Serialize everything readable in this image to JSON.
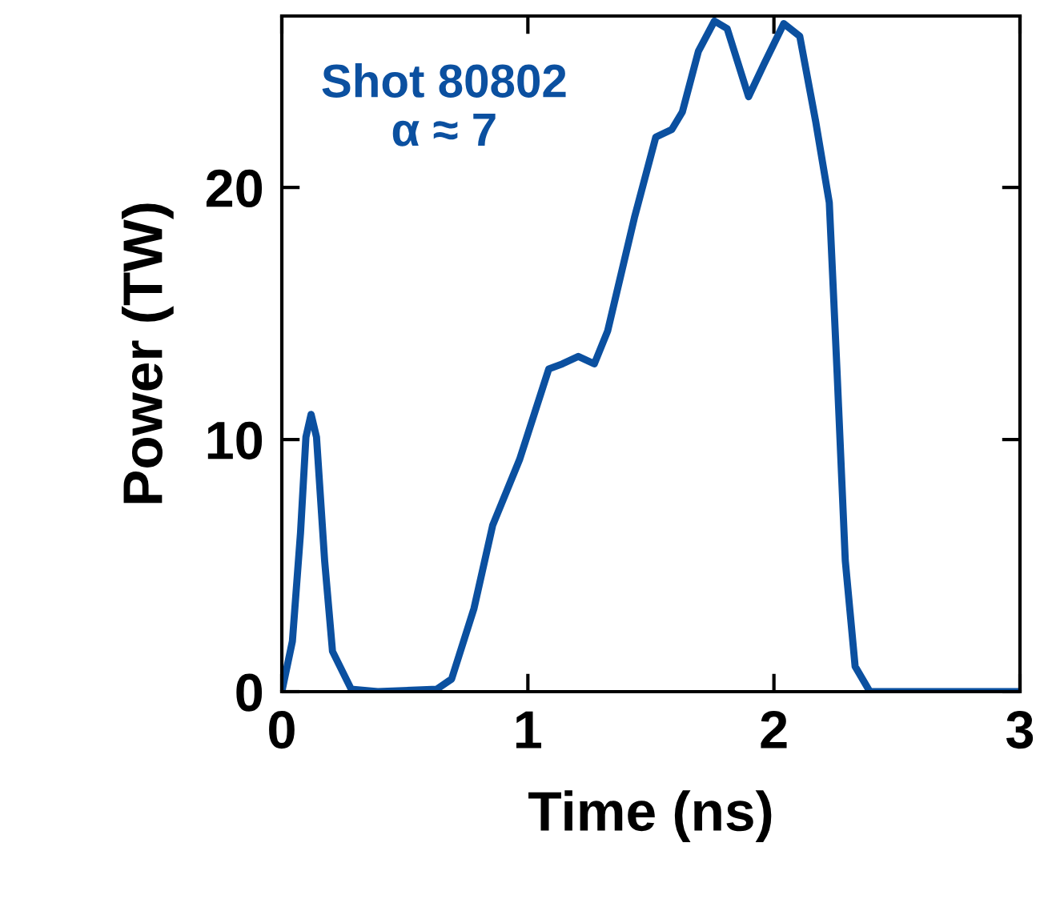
{
  "chart_data": {
    "type": "line",
    "xlabel": "Time (ns)",
    "ylabel": "Power (TW)",
    "annotations": [
      "Shot 80802\nα ≈ 7"
    ],
    "xlim": [
      0,
      3
    ],
    "ylim": [
      0,
      26.8
    ],
    "xticks": [
      0,
      1,
      2,
      3
    ],
    "yticks": [
      0,
      10,
      20
    ],
    "marker": "none",
    "line_style": "solid",
    "series": [
      {
        "color": "#0b50a0",
        "x": [
          0,
          0.043,
          0.076,
          0.098,
          0.119,
          0.141,
          0.174,
          0.206,
          0.282,
          0.39,
          0.63,
          0.69,
          0.781,
          0.857,
          0.966,
          1.085,
          1.14,
          1.205,
          1.27,
          1.324,
          1.433,
          1.52,
          1.585,
          1.628,
          1.693,
          1.758,
          1.81,
          1.897,
          1.96,
          2.04,
          2.105,
          2.17,
          2.225,
          2.257,
          2.29,
          2.33,
          2.39,
          3.0
        ],
        "values": [
          0,
          2.0,
          6.3,
          10.1,
          11.0,
          10.1,
          5.2,
          1.6,
          0.1,
          0,
          0.1,
          0.5,
          3.3,
          6.6,
          9.2,
          12.8,
          13.0,
          13.3,
          13.0,
          14.3,
          18.8,
          22.0,
          22.3,
          23.0,
          25.4,
          26.6,
          26.3,
          23.6,
          24.9,
          26.5,
          26.0,
          22.6,
          19.4,
          12.6,
          5.2,
          1.0,
          0,
          0
        ]
      }
    ]
  }
}
